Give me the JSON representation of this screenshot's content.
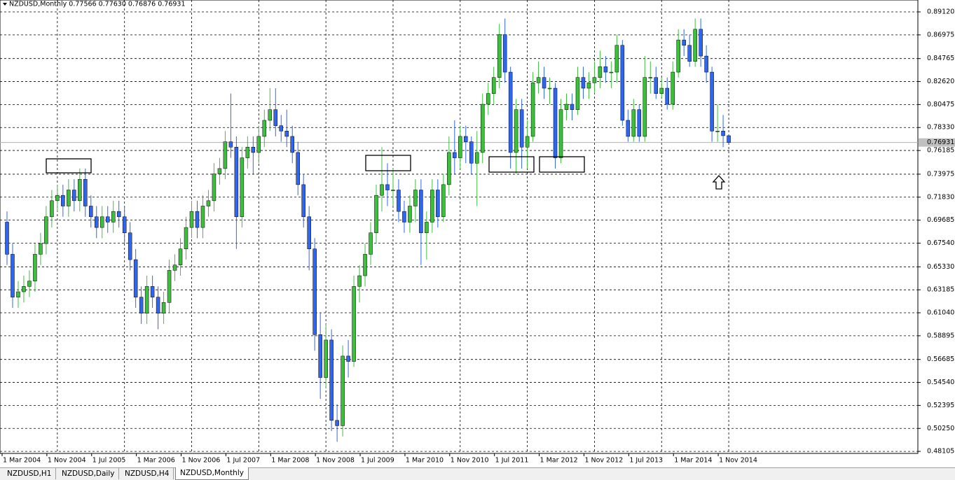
{
  "chart_data": {
    "type": "candlestick",
    "title": "NZDUSD,Monthly  0.77566 0.77630 0.76876 0.76931",
    "categories": [
      "1 Mar 2004",
      null,
      null,
      null,
      null,
      null,
      null,
      null,
      "1 Nov 2004",
      null,
      null,
      null,
      null,
      null,
      null,
      null,
      "1 Jul 2005",
      null,
      null,
      null,
      null,
      null,
      null,
      null,
      "1 Mar 2006",
      null,
      null,
      null,
      null,
      null,
      null,
      null,
      "1 Nov 2006",
      null,
      null,
      null,
      null,
      null,
      null,
      null,
      "1 Jul 2007",
      null,
      null,
      null,
      null,
      null,
      null,
      null,
      "1 Mar 2008",
      null,
      null,
      null,
      null,
      null,
      null,
      null,
      "1 Nov 2008",
      null,
      null,
      null,
      null,
      null,
      null,
      null,
      "1 Jul 2009",
      null,
      null,
      null,
      null,
      null,
      null,
      null,
      "1 Mar 2010",
      null,
      null,
      null,
      null,
      null,
      null,
      null,
      "1 Nov 2010",
      null,
      null,
      null,
      null,
      null,
      null,
      null,
      "1 Jul 2011",
      null,
      null,
      null,
      null,
      null,
      null,
      null,
      "1 Mar 2012",
      null,
      null,
      null,
      null,
      null,
      null,
      null,
      "1 Nov 2012",
      null,
      null,
      null,
      null,
      null,
      null,
      null,
      "1 Jul 2013",
      null,
      null,
      null,
      null,
      null,
      null,
      null,
      "1 Mar 2014",
      null,
      null,
      null,
      null,
      null,
      null,
      null,
      "1 Nov 2014",
      null
    ],
    "open": [
      0.695,
      0.665,
      0.625,
      0.63,
      0.635,
      0.64,
      0.665,
      0.675,
      0.7,
      0.715,
      0.72,
      0.71,
      0.725,
      0.715,
      0.735,
      0.71,
      0.7,
      0.69,
      0.7,
      0.695,
      0.705,
      0.7,
      0.685,
      0.66,
      0.625,
      0.61,
      0.635,
      0.625,
      0.61,
      0.62,
      0.65,
      0.655,
      0.67,
      0.69,
      0.705,
      0.69,
      0.71,
      0.715,
      0.74,
      0.745,
      0.77,
      0.765,
      0.7,
      0.755,
      0.765,
      0.76,
      0.775,
      0.79,
      0.8,
      0.785,
      0.78,
      0.775,
      0.76,
      0.73,
      0.7,
      0.67,
      0.59,
      0.55,
      0.585,
      0.51,
      0.505,
      0.57,
      0.565,
      0.635,
      0.645,
      0.665,
      0.685,
      0.72,
      0.73,
      0.725,
      0.725,
      0.705,
      0.695,
      0.71,
      0.725,
      0.685,
      0.695,
      0.725,
      0.7,
      0.73,
      0.76,
      0.755,
      0.775,
      0.77,
      0.75,
      0.76,
      0.805,
      0.815,
      0.83,
      0.87,
      0.835,
      0.76,
      0.8,
      0.765,
      0.775,
      0.825,
      0.83,
      0.82,
      0.82,
      0.755,
      0.8,
      0.805,
      0.8,
      0.83,
      0.82,
      0.825,
      0.83,
      0.84,
      0.835,
      0.835,
      0.86,
      0.79,
      0.775,
      0.8,
      0.775,
      0.83,
      0.83,
      0.815,
      0.82,
      0.805,
      0.835,
      0.865,
      0.86,
      0.845,
      0.875,
      0.85,
      0.835,
      0.78,
      0.78,
      0.77566
    ],
    "high": [
      0.705,
      0.675,
      0.64,
      0.645,
      0.65,
      0.675,
      0.685,
      0.71,
      0.725,
      0.73,
      0.73,
      0.735,
      0.735,
      0.745,
      0.745,
      0.72,
      0.71,
      0.71,
      0.71,
      0.715,
      0.715,
      0.71,
      0.695,
      0.67,
      0.635,
      0.645,
      0.645,
      0.635,
      0.63,
      0.66,
      0.665,
      0.68,
      0.7,
      0.715,
      0.715,
      0.72,
      0.725,
      0.75,
      0.755,
      0.78,
      0.815,
      0.775,
      0.765,
      0.775,
      0.775,
      0.785,
      0.8,
      0.82,
      0.82,
      0.795,
      0.8,
      0.785,
      0.77,
      0.74,
      0.71,
      0.68,
      0.61,
      0.6,
      0.595,
      0.525,
      0.58,
      0.585,
      0.645,
      0.655,
      0.675,
      0.695,
      0.73,
      0.765,
      0.75,
      0.745,
      0.735,
      0.715,
      0.72,
      0.735,
      0.735,
      0.705,
      0.735,
      0.735,
      0.74,
      0.775,
      0.79,
      0.785,
      0.785,
      0.775,
      0.78,
      0.815,
      0.825,
      0.84,
      0.88,
      0.885,
      0.84,
      0.81,
      0.81,
      0.79,
      0.835,
      0.845,
      0.84,
      0.83,
      0.825,
      0.81,
      0.815,
      0.815,
      0.84,
      0.84,
      0.835,
      0.845,
      0.855,
      0.85,
      0.845,
      0.87,
      0.865,
      0.8,
      0.81,
      0.805,
      0.85,
      0.845,
      0.84,
      0.83,
      0.83,
      0.845,
      0.875,
      0.875,
      0.87,
      0.885,
      0.885,
      0.86,
      0.84,
      0.805,
      0.795,
      0.7763
    ],
    "low": [
      0.655,
      0.615,
      0.615,
      0.62,
      0.625,
      0.63,
      0.655,
      0.665,
      0.69,
      0.705,
      0.7,
      0.7,
      0.705,
      0.705,
      0.7,
      0.69,
      0.68,
      0.68,
      0.685,
      0.685,
      0.69,
      0.675,
      0.65,
      0.615,
      0.6,
      0.6,
      0.615,
      0.595,
      0.6,
      0.61,
      0.64,
      0.645,
      0.66,
      0.68,
      0.68,
      0.68,
      0.7,
      0.705,
      0.73,
      0.735,
      0.755,
      0.67,
      0.69,
      0.745,
      0.74,
      0.75,
      0.765,
      0.78,
      0.775,
      0.77,
      0.765,
      0.75,
      0.72,
      0.69,
      0.65,
      0.575,
      0.53,
      0.54,
      0.5,
      0.49,
      0.495,
      0.55,
      0.56,
      0.62,
      0.635,
      0.655,
      0.675,
      0.705,
      0.71,
      0.71,
      0.695,
      0.685,
      0.685,
      0.695,
      0.655,
      0.66,
      0.685,
      0.69,
      0.695,
      0.72,
      0.74,
      0.745,
      0.75,
      0.74,
      0.71,
      0.75,
      0.795,
      0.805,
      0.82,
      0.825,
      0.745,
      0.74,
      0.745,
      0.745,
      0.77,
      0.815,
      0.81,
      0.805,
      0.745,
      0.75,
      0.79,
      0.79,
      0.795,
      0.81,
      0.81,
      0.815,
      0.82,
      0.825,
      0.82,
      0.825,
      0.785,
      0.77,
      0.77,
      0.77,
      0.77,
      0.815,
      0.81,
      0.81,
      0.8,
      0.8,
      0.83,
      0.85,
      0.84,
      0.84,
      0.84,
      0.825,
      0.77,
      0.77,
      0.765,
      0.76876
    ],
    "close": [
      0.665,
      0.625,
      0.63,
      0.635,
      0.64,
      0.665,
      0.675,
      0.7,
      0.715,
      0.72,
      0.71,
      0.725,
      0.715,
      0.735,
      0.71,
      0.7,
      0.69,
      0.7,
      0.695,
      0.705,
      0.7,
      0.685,
      0.66,
      0.625,
      0.61,
      0.635,
      0.625,
      0.61,
      0.62,
      0.65,
      0.655,
      0.67,
      0.69,
      0.705,
      0.69,
      0.71,
      0.715,
      0.74,
      0.745,
      0.77,
      0.765,
      0.7,
      0.755,
      0.765,
      0.76,
      0.775,
      0.79,
      0.8,
      0.785,
      0.78,
      0.775,
      0.76,
      0.73,
      0.7,
      0.67,
      0.59,
      0.55,
      0.585,
      0.51,
      0.505,
      0.57,
      0.565,
      0.635,
      0.645,
      0.665,
      0.685,
      0.72,
      0.73,
      0.725,
      0.725,
      0.705,
      0.695,
      0.71,
      0.725,
      0.685,
      0.695,
      0.725,
      0.7,
      0.73,
      0.76,
      0.755,
      0.775,
      0.77,
      0.75,
      0.76,
      0.805,
      0.815,
      0.83,
      0.87,
      0.835,
      0.76,
      0.8,
      0.765,
      0.775,
      0.825,
      0.83,
      0.82,
      0.82,
      0.755,
      0.8,
      0.805,
      0.8,
      0.83,
      0.82,
      0.825,
      0.83,
      0.84,
      0.835,
      0.835,
      0.86,
      0.79,
      0.775,
      0.8,
      0.775,
      0.83,
      0.83,
      0.815,
      0.82,
      0.805,
      0.835,
      0.865,
      0.86,
      0.845,
      0.875,
      0.85,
      0.835,
      0.78,
      0.78,
      0.77566,
      0.76931
    ],
    "up_color": "#3cc03c",
    "down_color": "#2f66f0",
    "ylim": [
      0.47916,
      0.9023
    ],
    "yticks": [
      {
        "value": 0.8912,
        "label": "0.89120"
      },
      0.86975,
      0.84765,
      {
        "value": 0.8262,
        "label": "0.82620"
      },
      0.80475,
      {
        "value": 0.7833,
        "label": "0.78330"
      },
      0.76185,
      0.73975,
      {
        "value": 0.7183,
        "label": "0.71830"
      },
      0.69685,
      {
        "value": 0.6754,
        "label": "0.67540"
      },
      {
        "value": 0.6533,
        "label": "0.65330"
      },
      0.63185,
      {
        "value": 0.6104,
        "label": "0.61040"
      },
      0.58895,
      0.56685,
      {
        "value": 0.5454,
        "label": "0.54540"
      },
      0.52395,
      {
        "value": 0.5025,
        "label": "0.50250"
      },
      0.48105
    ],
    "current_price": 0.76931,
    "grid": true
  },
  "tabs": [
    "NZDUSD,H1",
    "NZDUSD,Daily",
    "NZDUSD,H4",
    "NZDUSD,Monthly"
  ]
}
